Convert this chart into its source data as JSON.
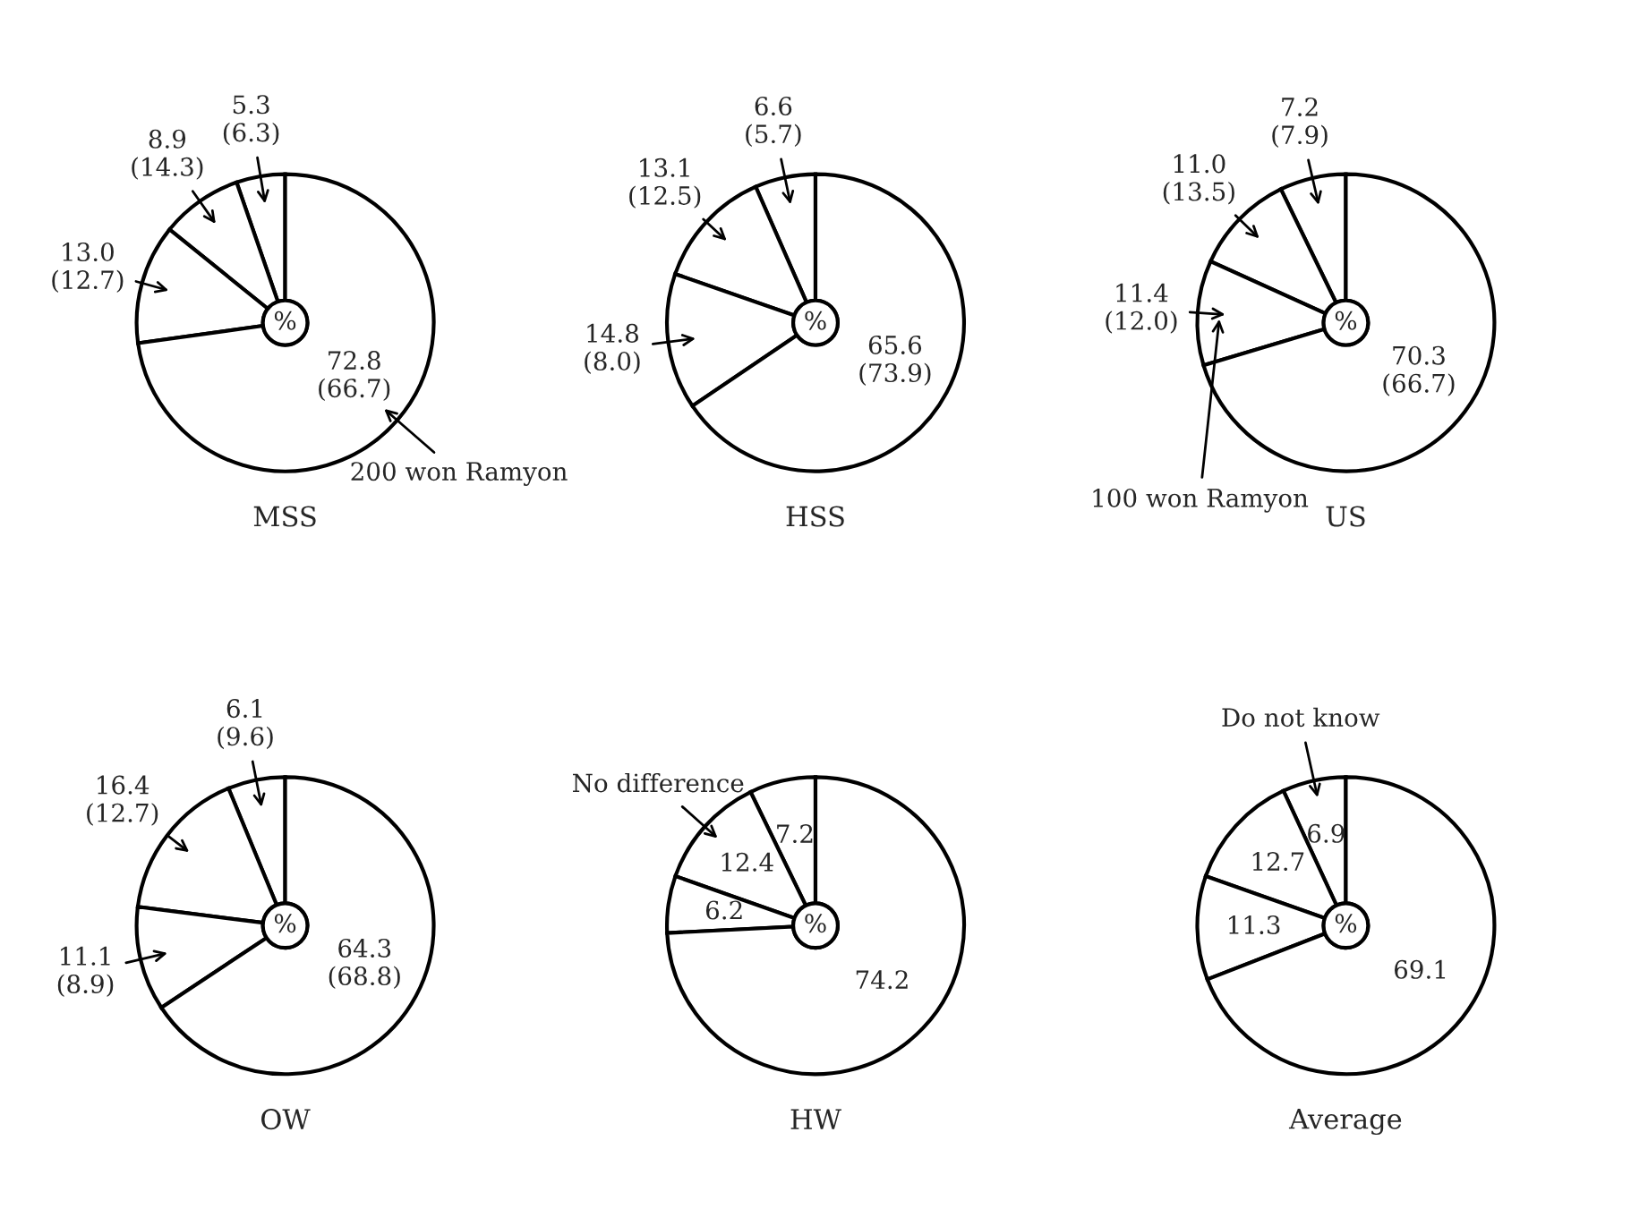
{
  "chart_data": [
    {
      "type": "donut",
      "title": "MSS",
      "categories": [
        null,
        null,
        null,
        "200 won Ramyon"
      ],
      "values": [
        5.3,
        8.9,
        13.0,
        72.8
      ],
      "value_labels": [
        "5.3\n(6.3)",
        "8.9\n(14.3)",
        "13.0\n(12.7)",
        "72.8\n(66.7)"
      ],
      "colors": [
        "#ffffff",
        "#ffffff",
        "#ffffff",
        "#ffffff"
      ],
      "annotations": [
        "%"
      ]
    },
    {
      "type": "donut",
      "title": "HSS",
      "categories": [
        null,
        null,
        null,
        null
      ],
      "values": [
        6.6,
        13.1,
        14.8,
        65.6
      ],
      "value_labels": [
        "6.6\n(5.7)",
        "13.1\n(12.5)",
        "14.8\n(8.0)",
        "65.6\n(73.9)"
      ],
      "colors": [
        "#ffffff",
        "#ffffff",
        "#ffffff",
        "#ffffff"
      ],
      "annotations": [
        "%"
      ]
    },
    {
      "type": "donut",
      "title": "US",
      "categories": [
        null,
        null,
        "100 won Ramyon",
        null
      ],
      "values": [
        7.2,
        11.0,
        11.4,
        70.3
      ],
      "value_labels": [
        "7.2\n(7.9)",
        "11.0\n(13.5)",
        "11.4\n(12.0)",
        "70.3\n(66.7)"
      ],
      "colors": [
        "#ffffff",
        "#ffffff",
        "#ffffff",
        "#ffffff"
      ],
      "annotations": [
        "%"
      ]
    },
    {
      "type": "donut",
      "title": "OW",
      "categories": [
        null,
        null,
        null,
        null
      ],
      "values": [
        6.1,
        16.4,
        11.1,
        64.3
      ],
      "value_labels": [
        "6.1\n(9.6)",
        "16.4\n(12.7)",
        "11.1\n(8.9)",
        "64.3\n(68.8)"
      ],
      "colors": [
        "#ffffff",
        "#ffffff",
        "#ffffff",
        "#ffffff"
      ],
      "annotations": [
        "%"
      ]
    },
    {
      "type": "donut",
      "title": "HW",
      "categories": [
        null,
        "No difference",
        null,
        null
      ],
      "values": [
        7.2,
        12.4,
        6.2,
        74.2
      ],
      "data_labels": true,
      "colors": [
        "#ffffff",
        "#ffffff",
        "#ffffff",
        "#ffffff"
      ],
      "annotations": [
        "%"
      ]
    },
    {
      "type": "donut",
      "title": "Average",
      "categories": [
        "Do not know",
        null,
        null,
        null
      ],
      "values": [
        6.9,
        12.7,
        11.3,
        69.1
      ],
      "data_labels": true,
      "colors": [
        "#ffffff",
        "#ffffff",
        "#ffffff",
        "#ffffff"
      ],
      "annotations": [
        "%"
      ]
    }
  ]
}
